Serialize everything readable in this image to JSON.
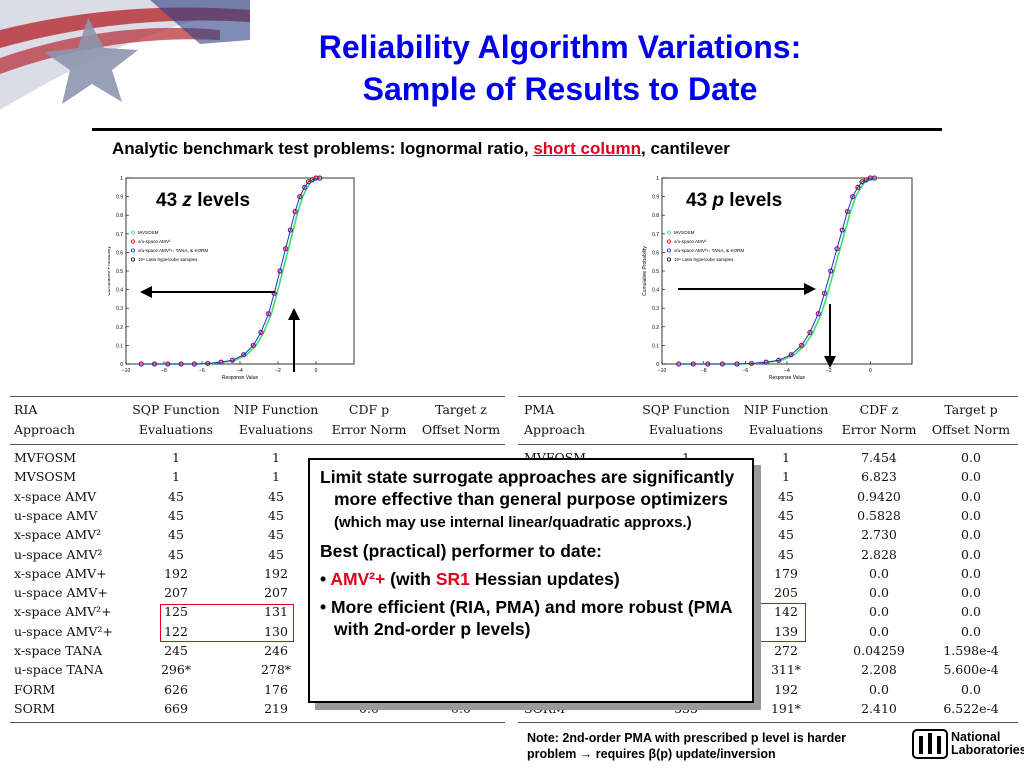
{
  "title": {
    "line1": "Reliability Algorithm Variations:",
    "line2": "Sample of Results to Date"
  },
  "subtitle": {
    "before": "Analytic benchmark test problems: lognormal ratio, ",
    "highlight": "short column",
    "after": ", cantilever"
  },
  "colors": {
    "title": "#0000ee",
    "highlight": "#e0001a",
    "mvfosm": "#36e06e",
    "amv2": "#e0001a",
    "tana": "#2030d0",
    "lhs": "#000000"
  },
  "left_plot": {
    "label_pre": "43 ",
    "label_var": "z",
    "label_post": " levels"
  },
  "right_plot": {
    "label_pre": "43 ",
    "label_var": "p",
    "label_post": " levels"
  },
  "chart_data": [
    {
      "type": "line",
      "title": "",
      "xlabel": "Response Value",
      "ylabel": "Cumulative Probability",
      "xlim": [
        -10,
        2
      ],
      "ylim": [
        0,
        1
      ],
      "xticks": [
        "−10",
        "−8",
        "−6",
        "−4",
        "−2",
        "0"
      ],
      "yticks": [
        "0",
        "0.1",
        "0.2",
        "0.3",
        "0.4",
        "0.5",
        "0.6",
        "0.7",
        "0.8",
        "0.9",
        "1"
      ],
      "legend": [
        "MVSOSM",
        "x/u-space AMV²",
        "x/u-space AMV²+, TANA, & SORM",
        "10⁶ Latin hypercube samples"
      ],
      "legend_placement": "top-left",
      "x": [
        -9.2,
        -8.5,
        -7.8,
        -7.1,
        -6.4,
        -5.7,
        -5.0,
        -4.4,
        -3.8,
        -3.3,
        -2.9,
        -2.5,
        -2.2,
        -1.9,
        -1.6,
        -1.35,
        -1.1,
        -0.85,
        -0.6,
        -0.4,
        -0.2,
        0.0,
        0.2
      ],
      "series": [
        {
          "name": "x/u-space AMV²+, TANA, & SORM",
          "values": [
            0.0,
            0.0,
            0.0,
            0.0,
            0.0,
            0.003,
            0.01,
            0.02,
            0.05,
            0.1,
            0.17,
            0.27,
            0.38,
            0.5,
            0.62,
            0.72,
            0.82,
            0.9,
            0.95,
            0.98,
            0.99,
            1.0,
            1.0
          ]
        }
      ]
    },
    {
      "type": "line",
      "title": "",
      "xlabel": "Response Value",
      "ylabel": "Cumulative Probability",
      "xlim": [
        -10,
        2
      ],
      "ylim": [
        0,
        1
      ],
      "xticks": [
        "−10",
        "−8",
        "−6",
        "−4",
        "−2",
        "0"
      ],
      "yticks": [
        "0",
        "0.1",
        "0.2",
        "0.3",
        "0.4",
        "0.5",
        "0.6",
        "0.7",
        "0.8",
        "0.9",
        "1"
      ],
      "legend": [
        "MVSOSM",
        "x/u-space AMV²",
        "x/u-space AMV²+, TANA, & SORM",
        "10⁶ Latin hypercube samples"
      ],
      "legend_placement": "top-left",
      "x": [
        -9.2,
        -8.5,
        -7.8,
        -7.1,
        -6.4,
        -5.7,
        -5.0,
        -4.4,
        -3.8,
        -3.3,
        -2.9,
        -2.5,
        -2.2,
        -1.9,
        -1.6,
        -1.35,
        -1.1,
        -0.85,
        -0.6,
        -0.4,
        -0.2,
        0.0,
        0.2
      ],
      "series": [
        {
          "name": "x/u-space AMV²+, TANA, & SORM",
          "values": [
            0.0,
            0.0,
            0.0,
            0.0,
            0.0,
            0.003,
            0.01,
            0.02,
            0.05,
            0.1,
            0.17,
            0.27,
            0.38,
            0.5,
            0.62,
            0.72,
            0.82,
            0.9,
            0.95,
            0.98,
            0.99,
            1.0,
            1.0
          ]
        }
      ]
    }
  ],
  "ria_table": {
    "headers": [
      [
        "RIA",
        "SQP Function",
        "NIP Function",
        "CDF p",
        "Target z"
      ],
      [
        "Approach",
        "Evaluations",
        "Evaluations",
        "Error Norm",
        "Offset Norm"
      ]
    ],
    "rows": [
      [
        "MVFOSM",
        "1",
        "1",
        "",
        ""
      ],
      [
        "MVSOSM",
        "1",
        "1",
        "",
        ""
      ],
      [
        "x-space AMV",
        "45",
        "45",
        "",
        ""
      ],
      [
        "u-space AMV",
        "45",
        "45",
        "",
        ""
      ],
      [
        "x-space AMV²",
        "45",
        "45",
        "",
        ""
      ],
      [
        "u-space AMV²",
        "45",
        "45",
        "",
        ""
      ],
      [
        "x-space AMV+",
        "192",
        "192",
        "",
        ""
      ],
      [
        "u-space AMV+",
        "207",
        "207",
        "",
        ""
      ],
      [
        "x-space AMV²+",
        "125",
        "131",
        "",
        ""
      ],
      [
        "u-space AMV²+",
        "122",
        "130",
        "",
        ""
      ],
      [
        "x-space TANA",
        "245",
        "246",
        "",
        ""
      ],
      [
        "u-space TANA",
        "296*",
        "278*",
        "",
        ""
      ],
      [
        "FORM",
        "626",
        "176",
        "",
        ""
      ],
      [
        "SORM",
        "669",
        "219",
        "0.0",
        "0.0"
      ]
    ]
  },
  "pma_table": {
    "headers": [
      [
        "PMA",
        "SQP Function",
        "NIP Function",
        "CDF z",
        "Target p"
      ],
      [
        "Approach",
        "Evaluations",
        "Evaluations",
        "Error Norm",
        "Offset Norm"
      ]
    ],
    "rows": [
      [
        "MVFOSM",
        "1",
        "1",
        "7.454",
        "0.0"
      ],
      [
        "MVSOSM",
        "",
        "1",
        "6.823",
        "0.0"
      ],
      [
        "x-space AMV",
        "",
        "45",
        "0.9420",
        "0.0"
      ],
      [
        "u-space AMV",
        "",
        "45",
        "0.5828",
        "0.0"
      ],
      [
        "x-space AMV²",
        "",
        "45",
        "2.730",
        "0.0"
      ],
      [
        "u-space AMV²",
        "",
        "45",
        "2.828",
        "0.0"
      ],
      [
        "x-space AMV+",
        "",
        "179",
        "0.0",
        "0.0"
      ],
      [
        "u-space AMV+",
        "",
        "205",
        "0.0",
        "0.0"
      ],
      [
        "x-space AMV²+",
        "",
        "142",
        "0.0",
        "0.0"
      ],
      [
        "u-space AMV²+",
        "",
        "139",
        "0.0",
        "0.0"
      ],
      [
        "x-space TANA",
        "",
        "272",
        "0.04259",
        "1.598e-4"
      ],
      [
        "u-space TANA",
        "",
        "311*",
        "2.208",
        "5.600e-4"
      ],
      [
        "FORM",
        "",
        "192",
        "0.0",
        "0.0"
      ],
      [
        "SORM",
        "535",
        "191*",
        "2.410",
        "6.522e-4"
      ]
    ]
  },
  "callout": {
    "p1_main": "Limit state surrogate approaches are significantly more effective than general purpose optimizers ",
    "p1_small": "(which may use internal linear/quadratic approxs.)",
    "p2": "Best (practical) performer to date:",
    "b1_red": "AMV²+",
    "b1_a": " (with ",
    "b1_red2": "SR1",
    "b1_b": " Hessian updates)",
    "b2": "More efficient (RIA, PMA) and more robust (PMA with 2nd-order p levels)"
  },
  "note": {
    "line1": "Note: 2nd-order PMA with prescribed p level is harder",
    "line2": "problem → requires β(p) update/inversion"
  },
  "logo": {
    "line1": "National",
    "line2": "Laboratories"
  }
}
